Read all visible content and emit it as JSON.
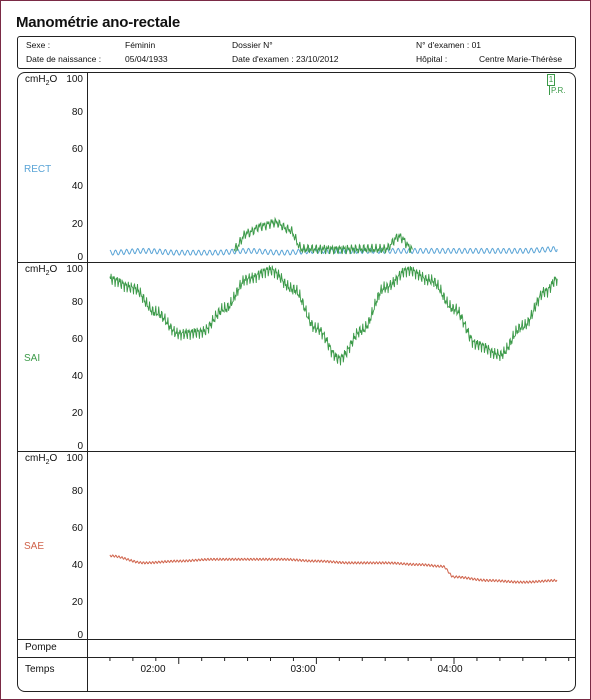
{
  "title": "Manométrie ano-rectale",
  "info": {
    "sex_label": "Sexe :",
    "sex_value": "Féminin",
    "dossier_label": "Dossier N°",
    "exam_no": "N° d'examen : 01",
    "birth_label": "Date de naissance :",
    "birth_value": "05/04/1933",
    "exam_date": "Date d'examen : 23/10/2012",
    "hospital_label": "Hôpital :",
    "hospital_value": "Centre Marie-Thérèse"
  },
  "unit_base": "cmH",
  "unit_sub": "2",
  "unit_tail": "O",
  "marker": {
    "number": "1",
    "label": "P.R."
  },
  "rows": {
    "pump": "Pompe",
    "time": "Temps"
  },
  "time_labels": [
    "02:00",
    "03:00",
    "04:00"
  ],
  "chart_data": [
    {
      "type": "line",
      "channel": "RECT",
      "color": "#5aa4d6",
      "ylim": [
        0,
        100
      ],
      "yticks": [
        "0",
        "20",
        "40",
        "60",
        "80",
        "100"
      ],
      "x": [
        "01:30",
        "01:45",
        "02:00",
        "02:15",
        "02:30",
        "02:45",
        "03:00",
        "03:15",
        "03:30",
        "03:45",
        "04:00",
        "04:15",
        "04:30",
        "04:45"
      ],
      "values": [
        3,
        4,
        3,
        3,
        4,
        3,
        4,
        4,
        4,
        4,
        4,
        4,
        4,
        5
      ]
    },
    {
      "type": "line",
      "channel": "RECT (P.R.)",
      "color": "#3c9a49",
      "ylim": [
        0,
        100
      ],
      "x": [
        "02:24",
        "02:30",
        "02:36",
        "02:42",
        "02:48",
        "02:54",
        "03:30",
        "03:36",
        "03:42"
      ],
      "values": [
        5,
        14,
        18,
        20,
        16,
        5,
        5,
        12,
        5
      ]
    },
    {
      "type": "line",
      "channel": "SAI",
      "color": "#3c9a49",
      "ylim": [
        0,
        100
      ],
      "yticks": [
        "0",
        "20",
        "40",
        "60",
        "80",
        "100"
      ],
      "x": [
        "01:30",
        "01:40",
        "01:50",
        "02:00",
        "02:10",
        "02:20",
        "02:30",
        "02:40",
        "02:50",
        "03:00",
        "03:10",
        "03:20",
        "03:30",
        "03:40",
        "03:50",
        "04:00",
        "04:10",
        "04:20",
        "04:30",
        "04:40",
        "04:45"
      ],
      "values": [
        95,
        90,
        76,
        64,
        65,
        78,
        95,
        100,
        89,
        67,
        50,
        66,
        90,
        100,
        94,
        78,
        58,
        52,
        68,
        88,
        95
      ]
    },
    {
      "type": "line",
      "channel": "SAE",
      "color": "#d0634b",
      "ylim": [
        0,
        100
      ],
      "yticks": [
        "0",
        "20",
        "40",
        "60",
        "80",
        "100"
      ],
      "x": [
        "01:30",
        "01:45",
        "02:00",
        "02:15",
        "02:30",
        "02:45",
        "03:00",
        "03:15",
        "03:30",
        "03:45",
        "03:55",
        "04:00",
        "04:15",
        "04:30",
        "04:45"
      ],
      "values": [
        45,
        41,
        42,
        43,
        43,
        43,
        42,
        41,
        41,
        40,
        39,
        33,
        31,
        30,
        31
      ]
    }
  ]
}
